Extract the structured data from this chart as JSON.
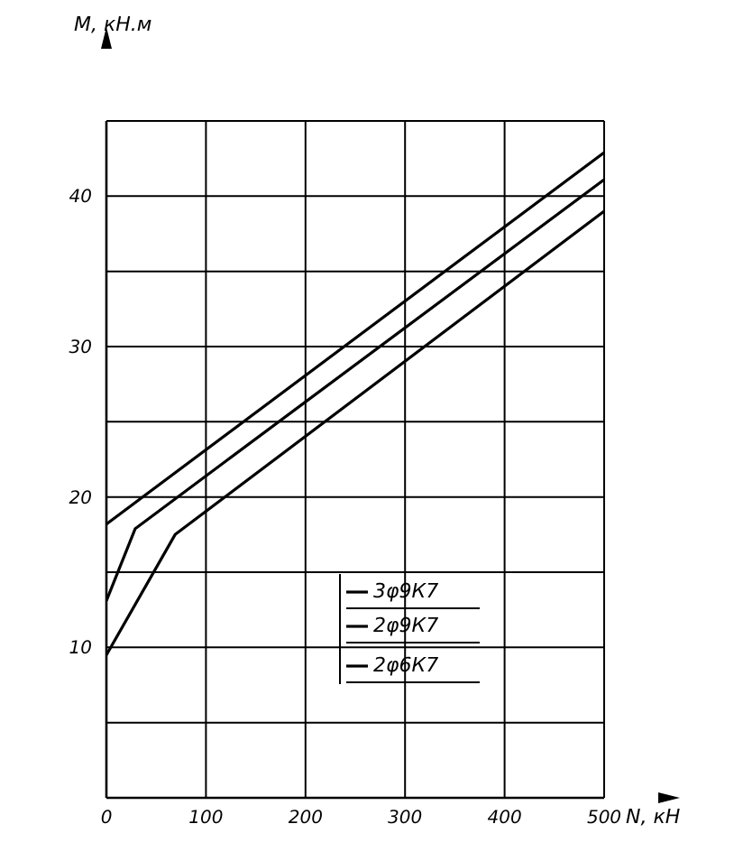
{
  "chart_data": {
    "type": "line",
    "xlabel": "N, кН",
    "ylabel": "M, кН.м",
    "xlim": [
      0,
      500
    ],
    "xticks": [
      0,
      100,
      200,
      300,
      400,
      500
    ],
    "ylim": [
      0,
      45
    ],
    "yticks": [
      {
        "value": 0,
        "label": null
      },
      {
        "value": 5,
        "label": null
      },
      10,
      {
        "value": 15,
        "label": null
      },
      20,
      {
        "value": 25,
        "label": null
      },
      30,
      {
        "value": 35,
        "label": null
      },
      40,
      {
        "value": 45,
        "label": null
      }
    ],
    "grid": true,
    "legend": "center",
    "series": [
      {
        "name": "3φ9К7",
        "color": "#000000",
        "x": [
          0,
          500
        ],
        "values": [
          18.2,
          42.9
        ]
      },
      {
        "name": "2φ9К7",
        "color": "#000000",
        "x": [
          0,
          29,
          500
        ],
        "values": [
          13.1,
          17.9,
          41.1
        ]
      },
      {
        "name": "2φ6К7",
        "color": "#000000",
        "x": [
          0,
          69,
          500
        ],
        "values": [
          9.5,
          17.5,
          39
        ]
      }
    ]
  }
}
